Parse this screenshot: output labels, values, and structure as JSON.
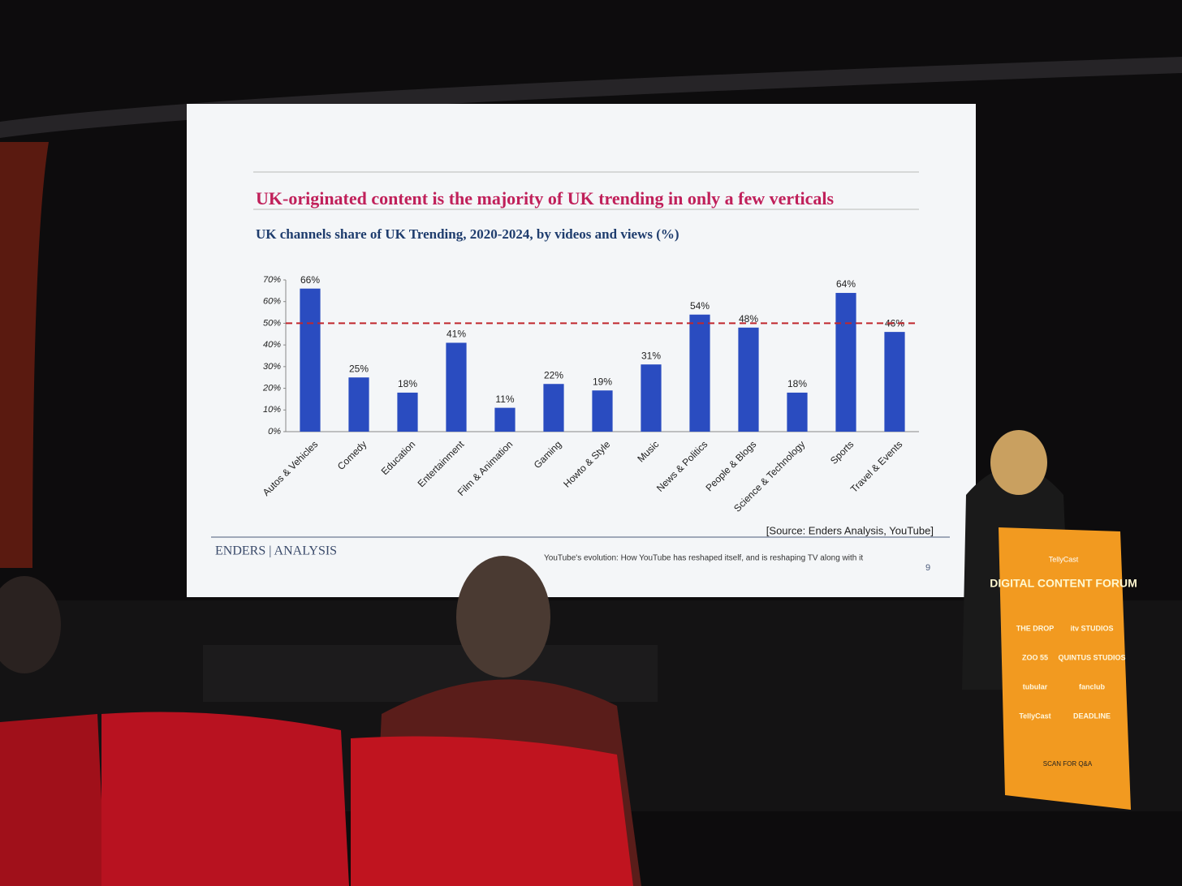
{
  "chart_data": {
    "type": "bar",
    "title": "UK-originated content is the majority of UK trending in only a few verticals",
    "subtitle": "UK channels share of UK Trending, 2020-2024, by videos and views (%)",
    "categories": [
      "Autos & Vehicles",
      "Comedy",
      "Education",
      "Entertainment",
      "Film & Animation",
      "Gaming",
      "Howto & Style",
      "Music",
      "News & Politics",
      "People & Blogs",
      "Science & Technology",
      "Sports",
      "Travel & Events"
    ],
    "values": [
      66,
      25,
      18,
      41,
      11,
      22,
      19,
      31,
      54,
      48,
      18,
      64,
      46
    ],
    "value_labels": [
      "66%",
      "25%",
      "18%",
      "41%",
      "11%",
      "22%",
      "19%",
      "31%",
      "54%",
      "48%",
      "18%",
      "64%",
      "46%"
    ],
    "color": "#2a4cc0",
    "ylim": [
      0,
      70
    ],
    "yticks": [
      {
        "value": 0,
        "label": "0%"
      },
      {
        "value": 10,
        "label": "10%"
      },
      {
        "value": 20,
        "label": "20%"
      },
      {
        "value": 30,
        "label": "30%"
      },
      {
        "value": 40,
        "label": "40%"
      },
      {
        "value": 50,
        "label": "50%"
      },
      {
        "value": 60,
        "label": "60%"
      },
      {
        "value": 70,
        "label": "70%"
      }
    ],
    "reference_line": 50,
    "reference_color": "#c0272d",
    "source": "[Source: Enders Analysis, YouTube]"
  },
  "slide": {
    "brand": "ENDERS | ANALYSIS",
    "footer": "YouTube's evolution: How YouTube has reshaped itself, and is reshaping TV along with it",
    "page": "9"
  },
  "podium": {
    "kicker": "TellyCast",
    "title": "DIGITAL CONTENT FORUM",
    "sponsors": [
      "THE DROP",
      "itv STUDIOS",
      "ZOO 55",
      "QUINTUS STUDIOS",
      "tubular",
      "fanclub",
      "TellyCast",
      "DEADLINE"
    ],
    "cta": "SCAN FOR Q&A"
  }
}
